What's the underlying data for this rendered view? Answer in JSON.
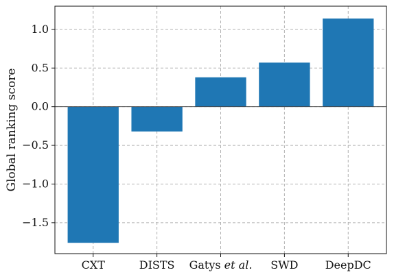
{
  "chart_data": {
    "type": "bar",
    "categories": [
      "CXT",
      "DISTS",
      "Gatys et al.",
      "SWD",
      "DeepDC"
    ],
    "category_parts": [
      [
        {
          "text": "CXT",
          "italic": false
        }
      ],
      [
        {
          "text": "DISTS",
          "italic": false
        }
      ],
      [
        {
          "text": "Gatys ",
          "italic": false
        },
        {
          "text": "et al.",
          "italic": true
        }
      ],
      [
        {
          "text": "SWD",
          "italic": false
        }
      ],
      [
        {
          "text": "DeepDC",
          "italic": false
        }
      ]
    ],
    "values": [
      -1.76,
      -0.32,
      0.38,
      0.57,
      1.14
    ],
    "title": "",
    "xlabel": "",
    "ylabel": "Global ranking score",
    "ylim": [
      -1.9,
      1.3
    ],
    "yticks": [
      -1.5,
      -1.0,
      -0.5,
      0.0,
      0.5,
      1.0
    ],
    "ytick_labels": [
      "−1.5",
      "−1.0",
      "−0.5",
      "0.0",
      "0.5",
      "1.0"
    ],
    "grid": true,
    "bar_color": "#1f77b4"
  }
}
